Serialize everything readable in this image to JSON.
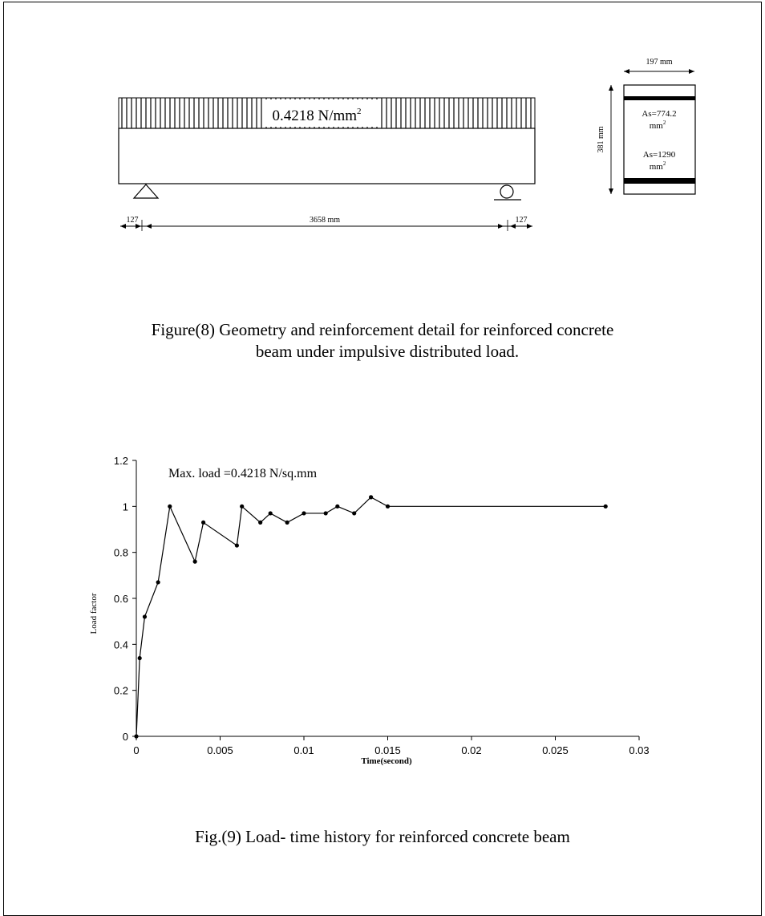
{
  "figure8": {
    "load_label": "0.4218 N/mm",
    "load_label_sup": "2",
    "dim_overhang_left": "127",
    "dim_span": "3658 mm",
    "dim_overhang_right": "127",
    "section_width": "197 mm",
    "section_height": "381 mm",
    "top_steel_line1": "As=774.2",
    "top_steel_line2": "mm",
    "top_steel_sup": "2",
    "bottom_steel_line1": "As=1290",
    "bottom_steel_line2": "mm",
    "bottom_steel_sup": "2",
    "caption_line1": "Figure(8) Geometry and reinforcement detail for reinforced concrete",
    "caption_line2": "beam under impulsive distributed load."
  },
  "figure9": {
    "caption": "Fig.(9) Load- time history  for reinforced concrete beam"
  },
  "chart_data": {
    "type": "line",
    "title": "",
    "annotation": "Max. load =0.4218 N/sq.mm",
    "xlabel": "Time(second)",
    "ylabel": "Load factor",
    "xlim": [
      0,
      0.03
    ],
    "ylim": [
      0,
      1.2
    ],
    "xticks": [
      "0",
      "0.005",
      "0.01",
      "0.015",
      "0.02",
      "0.025",
      "0.03"
    ],
    "yticks": [
      "0",
      "0.2",
      "0.4",
      "0.6",
      "0.8",
      "1",
      "1.2"
    ],
    "grid": false,
    "legend": "none",
    "color": "#000000",
    "series": [
      {
        "x": [
          0,
          0.0002,
          0.0005,
          0.0013,
          0.002,
          0.0035,
          0.004,
          0.006,
          0.0063,
          0.0074,
          0.008,
          0.009,
          0.01,
          0.0113,
          0.012,
          0.013,
          0.014,
          0.015,
          0.028
        ],
        "y": [
          0,
          0.34,
          0.52,
          0.67,
          1.0,
          0.76,
          0.93,
          0.83,
          1.0,
          0.93,
          0.97,
          0.93,
          0.97,
          0.97,
          1.0,
          0.97,
          1.04,
          1.0,
          1.0
        ]
      }
    ]
  }
}
